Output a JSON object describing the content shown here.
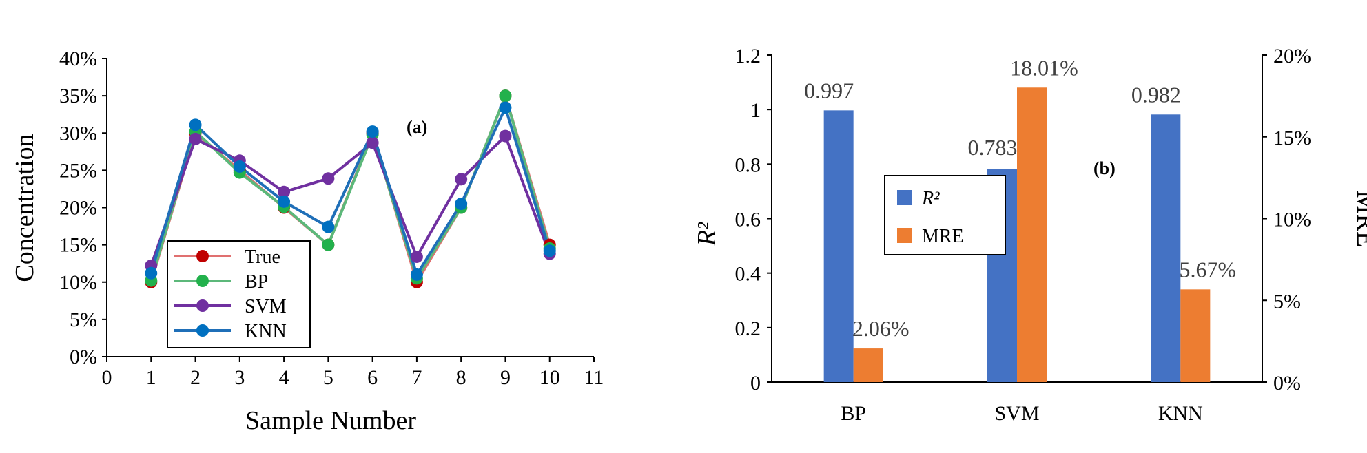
{
  "chart_data": [
    {
      "type": "line",
      "panel_label": "(a)",
      "xlabel": "Sample Number",
      "ylabel": "Concentration",
      "xlim": [
        0,
        11
      ],
      "ylim": [
        0,
        0.4
      ],
      "x_ticks": [
        "0",
        "1",
        "2",
        "3",
        "4",
        "5",
        "6",
        "7",
        "8",
        "9",
        "10",
        "11"
      ],
      "y_ticks": [
        "0%",
        "5%",
        "10%",
        "15%",
        "20%",
        "25%",
        "30%",
        "35%",
        "40%"
      ],
      "x": [
        1,
        2,
        3,
        4,
        5,
        6,
        7,
        8,
        9,
        10
      ],
      "legend_position": "bottom-left",
      "series": [
        {
          "name": "True",
          "color": "#C00000",
          "line_color": "#E07070",
          "values": [
            0.1,
            0.3,
            0.25,
            0.2,
            0.15,
            0.3,
            0.1,
            0.2,
            0.35,
            0.15
          ]
        },
        {
          "name": "BP",
          "color": "#22B14C",
          "line_color": "#5CB87A",
          "values": [
            0.102,
            0.302,
            0.247,
            0.201,
            0.15,
            0.298,
            0.105,
            0.2,
            0.35,
            0.145
          ]
        },
        {
          "name": "SVM",
          "color": "#7030A0",
          "line_color": "#7030A0",
          "values": [
            0.122,
            0.292,
            0.263,
            0.221,
            0.239,
            0.287,
            0.134,
            0.238,
            0.296,
            0.138
          ]
        },
        {
          "name": "KNN",
          "color": "#0070C0",
          "line_color": "#1F6FB8",
          "values": [
            0.112,
            0.311,
            0.255,
            0.208,
            0.174,
            0.302,
            0.11,
            0.205,
            0.334,
            0.142
          ]
        }
      ]
    },
    {
      "type": "bar",
      "panel_label": "(b)",
      "categories": [
        "BP",
        "SVM",
        "KNN"
      ],
      "ylabel": "R²",
      "y2label": "MRE",
      "ylim": [
        0,
        1.2
      ],
      "y2lim": [
        0,
        0.2
      ],
      "y_ticks": [
        "0",
        "0.2",
        "0.4",
        "0.6",
        "0.8",
        "1",
        "1.2"
      ],
      "y2_ticks": [
        "0%",
        "5%",
        "10%",
        "15%",
        "20%"
      ],
      "legend_position": "center-left",
      "series": [
        {
          "name": "R²",
          "axis": "left",
          "color": "#4472C4",
          "values": [
            0.997,
            0.783,
            0.982
          ],
          "labels": [
            "0.997",
            "0.783",
            "0.982"
          ]
        },
        {
          "name": "MRE",
          "axis": "right",
          "color": "#ED7D31",
          "values": [
            0.0206,
            0.1801,
            0.0567
          ],
          "labels": [
            "2.06%",
            "18.01%",
            "5.67%"
          ]
        }
      ]
    }
  ]
}
